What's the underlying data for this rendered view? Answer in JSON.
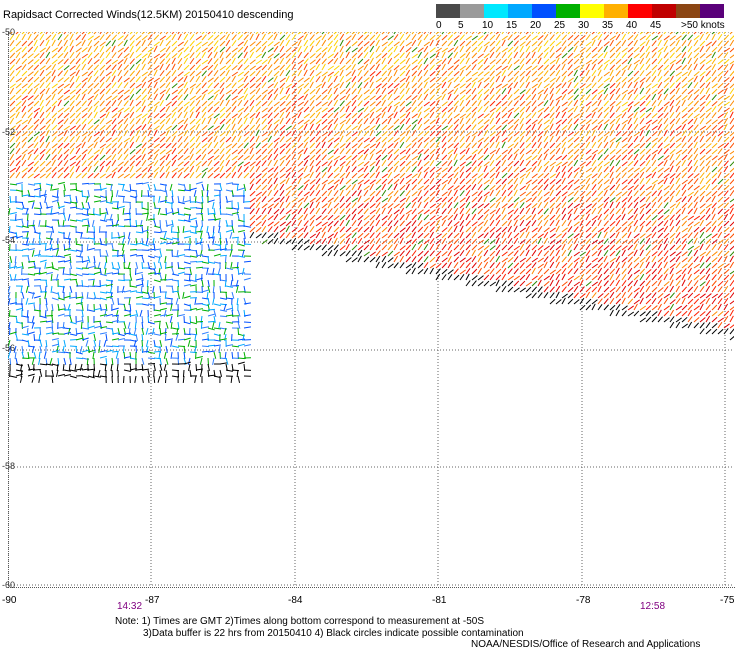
{
  "title": "Rapidsact Corrected Winds(12.5KM) 20150410 descending",
  "legend": {
    "labels": [
      "0",
      "5",
      "10",
      "15",
      "20",
      "25",
      "30",
      "35",
      "40",
      "45",
      ">50 knots"
    ],
    "colors": [
      "#303030",
      "#8a8a8a",
      "#00e8ff",
      "#00a8ff",
      "#0050ff",
      "#00b000",
      "#ffff00",
      "#ffb000",
      "#ff0000",
      "#c00000",
      "#ff00ff",
      "#8b4513",
      "#9d9d9d",
      "#5a007a"
    ]
  },
  "lat_labels": [
    "-50",
    "-52",
    "-54",
    "-56",
    "-58",
    "-60"
  ],
  "lon_labels": [
    "-90",
    "-87",
    "-84",
    "-81",
    "-78",
    "-75"
  ],
  "time_left": "14:32",
  "time_right": "12:58",
  "notes": {
    "line1": "Note: 1) Times are GMT 2)Times along bottom correspond to measurement at -50S",
    "line2": "3)Data buffer is 22 hrs from 20150410 4) Black circles indicate possible contamination",
    "line3": "NOAA/NESDIS/Office of Research and Applications"
  }
}
